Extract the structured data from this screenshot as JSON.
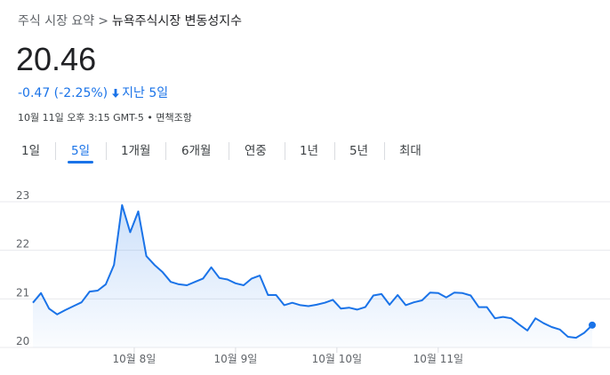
{
  "breadcrumb": {
    "root": "주식 시장 요약",
    "separator": ">",
    "current": "뉴욕주식시장 변동성지수"
  },
  "quote": {
    "price": "20.46",
    "change": "-0.47 (-2.25%)",
    "direction_icon": "arrow-down-icon",
    "period": "지난 5일",
    "timestamp": "10월 11일 오후 3:15 GMT-5 • 면책조항",
    "accent_color": "#1a73e8"
  },
  "tabs": [
    {
      "label": "1일",
      "active": false
    },
    {
      "label": "5일",
      "active": true
    },
    {
      "label": "1개월",
      "active": false
    },
    {
      "label": "6개월",
      "active": false
    },
    {
      "label": "연중",
      "active": false
    },
    {
      "label": "1년",
      "active": false
    },
    {
      "label": "5년",
      "active": false
    },
    {
      "label": "최대",
      "active": false
    }
  ],
  "chart_data": {
    "type": "area",
    "title": "",
    "xlabel": "",
    "ylabel": "",
    "ylim": [
      20,
      23
    ],
    "yticks": [
      20,
      21,
      22,
      23
    ],
    "xticks": [
      {
        "label": "10월 8일",
        "x": 10
      },
      {
        "label": "10월 9일",
        "x": 20
      },
      {
        "label": "10월 10일",
        "x": 30
      },
      {
        "label": "10월 11일",
        "x": 40
      }
    ],
    "grid": true,
    "line_color": "#1a73e8",
    "series": [
      {
        "x": [
          0,
          0.8,
          1.6,
          2.4,
          3.2,
          4.0,
          4.8,
          5.6,
          6.4,
          7.2,
          8.0,
          8.8,
          9.6,
          10.4,
          11.2,
          12.0,
          12.8,
          13.6,
          14.4,
          15.2,
          16.0,
          16.8,
          17.6,
          18.4,
          19.2,
          20.0,
          20.8,
          21.6,
          22.4,
          23.2,
          24.0,
          24.8,
          25.6,
          26.4,
          27.2,
          28.0,
          28.8,
          29.6,
          30.4,
          31.2,
          32.0,
          32.8,
          33.6,
          34.4,
          35.2,
          36.0,
          36.8,
          37.6,
          38.4,
          39.2,
          40.0,
          40.8,
          41.6,
          42.4,
          43.2,
          44.0,
          44.8,
          45.6,
          46.4,
          47.2,
          48.0,
          48.8,
          49.6
        ],
        "values": [
          20.92,
          21.12,
          20.8,
          20.68,
          20.77,
          20.85,
          20.93,
          21.15,
          21.17,
          21.3,
          21.7,
          22.93,
          22.37,
          22.8,
          21.88,
          21.7,
          21.55,
          21.35,
          21.3,
          21.28,
          21.35,
          21.42,
          21.65,
          21.43,
          21.4,
          21.32,
          21.28,
          21.42,
          21.48,
          21.08,
          21.08,
          20.87,
          20.92,
          20.87,
          20.85,
          20.88,
          20.92,
          20.98,
          20.8,
          20.82,
          20.78,
          20.83,
          21.07,
          21.1,
          20.88,
          21.08,
          20.87,
          20.93,
          20.97,
          21.13,
          21.12,
          21.03,
          21.13,
          21.12,
          21.07,
          20.83,
          20.83,
          20.6,
          20.63,
          20.6,
          20.47,
          20.35,
          20.6
        ]
      }
    ],
    "extra_points": {
      "x": [
        50.4,
        51.2,
        52.0,
        52.8,
        53.6,
        54.4,
        55.2
      ],
      "values": [
        20.5,
        20.42,
        20.37,
        20.22,
        20.2,
        20.3,
        20.46
      ]
    }
  }
}
